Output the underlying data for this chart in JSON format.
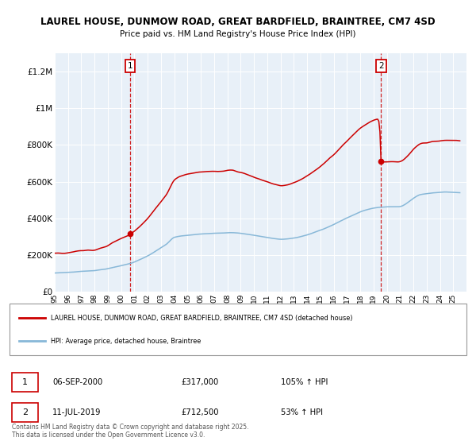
{
  "title_line1": "LAUREL HOUSE, DUNMOW ROAD, GREAT BARDFIELD, BRAINTREE, CM7 4SD",
  "title_line2": "Price paid vs. HM Land Registry's House Price Index (HPI)",
  "plot_bg_color": "#e8f0f8",
  "red_color": "#cc0000",
  "blue_color": "#88b8d8",
  "marker1_price": 317000,
  "marker2_price": 712500,
  "marker1_year": 2000.67,
  "marker2_year": 2019.53,
  "legend1": "LAUREL HOUSE, DUNMOW ROAD, GREAT BARDFIELD, BRAINTREE, CM7 4SD (detached house)",
  "legend2": "HPI: Average price, detached house, Braintree",
  "ann1_date": "06-SEP-2000",
  "ann1_price": "£317,000",
  "ann1_pct": "105% ↑ HPI",
  "ann2_date": "11-JUL-2019",
  "ann2_price": "£712,500",
  "ann2_pct": "53% ↑ HPI",
  "footer": "Contains HM Land Registry data © Crown copyright and database right 2025.\nThis data is licensed under the Open Government Licence v3.0.",
  "ylim_min": 0,
  "ylim_max": 1300000,
  "ytick_values": [
    0,
    200000,
    400000,
    600000,
    800000,
    1000000,
    1200000
  ],
  "ytick_labels": [
    "£0",
    "£200K",
    "£400K",
    "£600K",
    "£800K",
    "£1M",
    "£1.2M"
  ],
  "xmin": 1995,
  "xmax": 2026
}
